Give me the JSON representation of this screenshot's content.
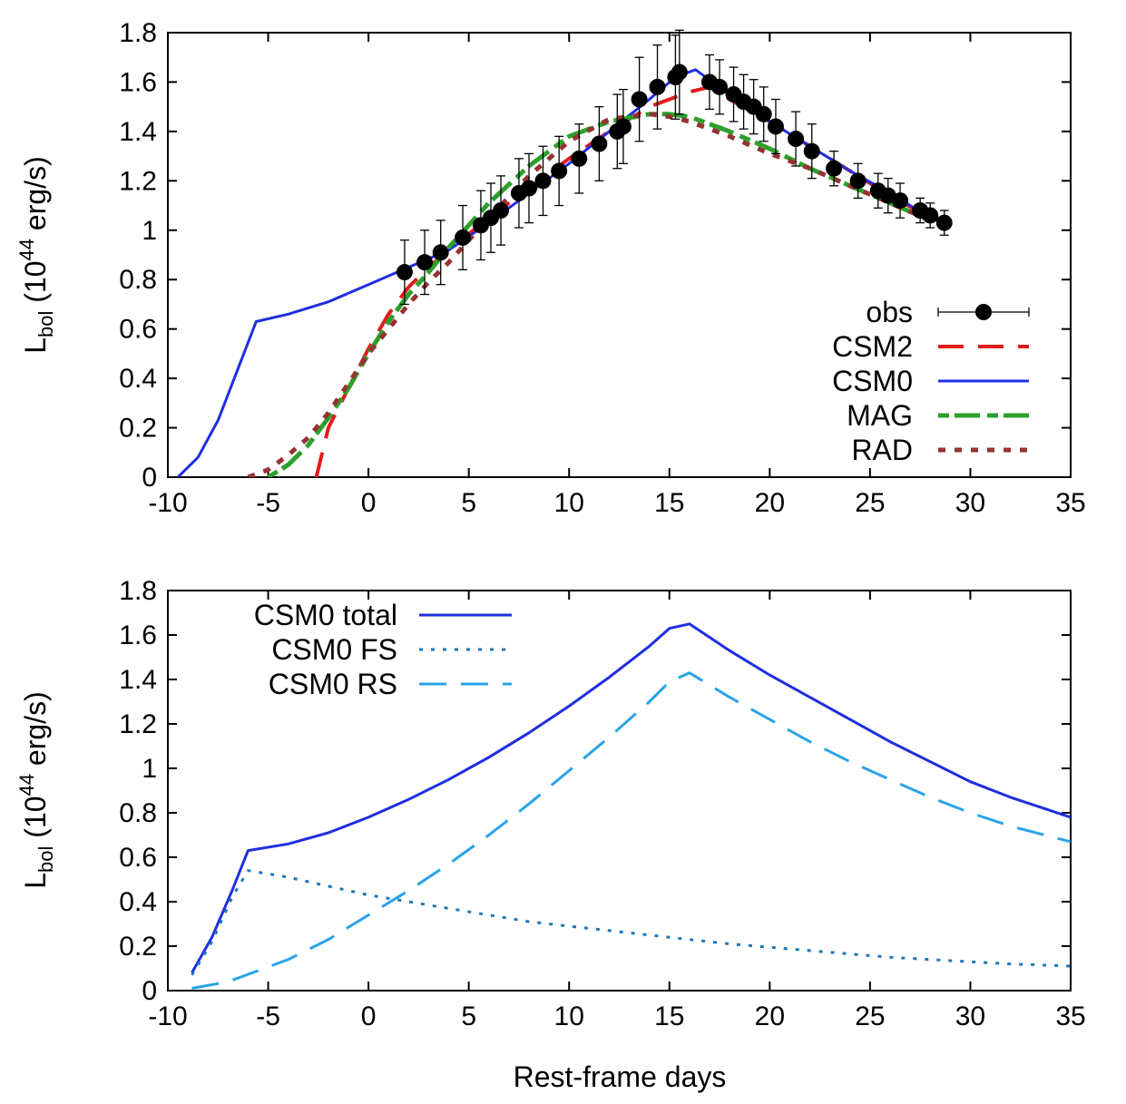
{
  "chart_data": [
    {
      "type": "line",
      "title": "",
      "xlabel": "",
      "ylabel_main": "L",
      "ylabel_sub": "bol",
      "ylabel_unit_pre": " (10",
      "ylabel_exp": "44",
      "ylabel_unit_post": " erg/s)",
      "xlim": [
        -10,
        35
      ],
      "ylim": [
        0,
        1.8
      ],
      "xticks": [
        "-10",
        "-5",
        "0",
        "5",
        "10",
        "15",
        "20",
        "25",
        "30",
        "35"
      ],
      "yticks": [
        "0",
        "0.2",
        "0.4",
        "0.6",
        "0.8",
        "1",
        "1.2",
        "1.4",
        "1.6",
        "1.8"
      ],
      "legend_position": "bottom-right",
      "observations": {
        "name": "obs",
        "color": "#000000",
        "points": [
          {
            "x": 1.8,
            "y": 0.83,
            "err": 0.13
          },
          {
            "x": 2.8,
            "y": 0.87,
            "err": 0.13
          },
          {
            "x": 3.6,
            "y": 0.91,
            "err": 0.13
          },
          {
            "x": 4.7,
            "y": 0.97,
            "err": 0.13
          },
          {
            "x": 5.6,
            "y": 1.02,
            "err": 0.14
          },
          {
            "x": 6.1,
            "y": 1.05,
            "err": 0.14
          },
          {
            "x": 6.6,
            "y": 1.08,
            "err": 0.14
          },
          {
            "x": 7.5,
            "y": 1.15,
            "err": 0.14
          },
          {
            "x": 8.0,
            "y": 1.17,
            "err": 0.14
          },
          {
            "x": 8.7,
            "y": 1.2,
            "err": 0.14
          },
          {
            "x": 9.5,
            "y": 1.24,
            "err": 0.14
          },
          {
            "x": 10.5,
            "y": 1.29,
            "err": 0.14
          },
          {
            "x": 11.5,
            "y": 1.35,
            "err": 0.15
          },
          {
            "x": 12.4,
            "y": 1.4,
            "err": 0.15
          },
          {
            "x": 12.7,
            "y": 1.42,
            "err": 0.15
          },
          {
            "x": 13.5,
            "y": 1.53,
            "err": 0.17
          },
          {
            "x": 14.4,
            "y": 1.58,
            "err": 0.17
          },
          {
            "x": 15.3,
            "y": 1.62,
            "err": 0.17
          },
          {
            "x": 15.5,
            "y": 1.64,
            "err": 0.17
          },
          {
            "x": 17.0,
            "y": 1.6,
            "err": 0.11
          },
          {
            "x": 17.5,
            "y": 1.58,
            "err": 0.11
          },
          {
            "x": 18.2,
            "y": 1.55,
            "err": 0.11
          },
          {
            "x": 18.7,
            "y": 1.52,
            "err": 0.11
          },
          {
            "x": 19.2,
            "y": 1.5,
            "err": 0.11
          },
          {
            "x": 19.7,
            "y": 1.47,
            "err": 0.11
          },
          {
            "x": 20.3,
            "y": 1.42,
            "err": 0.11
          },
          {
            "x": 21.3,
            "y": 1.37,
            "err": 0.11
          },
          {
            "x": 22.1,
            "y": 1.32,
            "err": 0.11
          },
          {
            "x": 23.2,
            "y": 1.25,
            "err": 0.07
          },
          {
            "x": 24.4,
            "y": 1.2,
            "err": 0.07
          },
          {
            "x": 25.4,
            "y": 1.16,
            "err": 0.07
          },
          {
            "x": 25.9,
            "y": 1.14,
            "err": 0.07
          },
          {
            "x": 26.5,
            "y": 1.12,
            "err": 0.07
          },
          {
            "x": 27.5,
            "y": 1.08,
            "err": 0.05
          },
          {
            "x": 28.0,
            "y": 1.06,
            "err": 0.05
          },
          {
            "x": 28.7,
            "y": 1.03,
            "err": 0.05
          }
        ]
      },
      "series": [
        {
          "name": "CSM2",
          "color": "#e41a1c",
          "dash": "28,16",
          "width": 4,
          "x": [
            -2.6,
            -2.0,
            -1.0,
            0.0,
            1.0,
            2.0,
            3.0,
            4.0,
            6.0,
            8.0,
            10.0,
            12.0,
            14.0,
            15.0,
            16.0,
            17.0,
            18.0,
            20.0,
            22.0,
            24.0,
            26.0,
            28.0
          ],
          "y": [
            0.0,
            0.2,
            0.36,
            0.52,
            0.66,
            0.77,
            0.85,
            0.92,
            1.05,
            1.17,
            1.29,
            1.4,
            1.5,
            1.53,
            1.56,
            1.58,
            1.53,
            1.44,
            1.34,
            1.24,
            1.14,
            1.05
          ]
        },
        {
          "name": "CSM0",
          "color": "#1f2ee0",
          "dash": "",
          "width": 3,
          "x": [
            -9.5,
            -8.5,
            -7.5,
            -6.5,
            -5.6,
            -4.0,
            -2.0,
            0.0,
            2.0,
            4.0,
            6.0,
            8.0,
            10.0,
            12.0,
            14.0,
            15.3,
            16.3,
            18.0,
            20.0,
            22.0,
            24.0,
            26.0,
            28.0
          ],
          "y": [
            0.0,
            0.08,
            0.23,
            0.44,
            0.63,
            0.66,
            0.71,
            0.78,
            0.85,
            0.92,
            1.03,
            1.15,
            1.27,
            1.4,
            1.53,
            1.62,
            1.65,
            1.55,
            1.44,
            1.34,
            1.24,
            1.15,
            1.05
          ]
        },
        {
          "name": "MAG",
          "color": "#2ca02c",
          "dash": "12,6,28,8",
          "width": 5,
          "x": [
            -5.0,
            -4.0,
            -3.0,
            -2.0,
            -1.0,
            0.0,
            1.0,
            2.0,
            3.0,
            4.0,
            6.0,
            8.0,
            10.0,
            12.0,
            14.0,
            15.0,
            16.0,
            18.0,
            20.0,
            22.0,
            24.0,
            26.0,
            28.0
          ],
          "y": [
            0.0,
            0.05,
            0.13,
            0.24,
            0.36,
            0.5,
            0.63,
            0.74,
            0.83,
            0.93,
            1.11,
            1.26,
            1.38,
            1.44,
            1.47,
            1.47,
            1.46,
            1.4,
            1.33,
            1.25,
            1.18,
            1.11,
            1.04
          ]
        },
        {
          "name": "RAD",
          "color": "#963232",
          "dash": "8,10",
          "width": 5,
          "x": [
            -6.0,
            -5.0,
            -4.0,
            -3.0,
            -2.0,
            -1.0,
            0.0,
            1.0,
            2.0,
            3.0,
            4.0,
            6.0,
            8.0,
            10.0,
            12.0,
            14.0,
            15.0,
            16.0,
            18.0,
            20.0,
            22.0,
            24.0,
            26.0,
            28.0
          ],
          "y": [
            0.0,
            0.03,
            0.09,
            0.16,
            0.26,
            0.38,
            0.5,
            0.6,
            0.7,
            0.79,
            0.87,
            1.05,
            1.22,
            1.36,
            1.45,
            1.47,
            1.46,
            1.44,
            1.38,
            1.31,
            1.25,
            1.18,
            1.11,
            1.04
          ]
        }
      ],
      "legend": [
        "obs",
        "CSM2",
        "CSM0",
        "MAG",
        "RAD"
      ]
    },
    {
      "type": "line",
      "title": "",
      "xlabel": "Rest-frame days",
      "ylabel_main": "L",
      "ylabel_sub": "bol",
      "ylabel_unit_pre": " (10",
      "ylabel_exp": "44",
      "ylabel_unit_post": " erg/s)",
      "xlim": [
        -10,
        35
      ],
      "ylim": [
        0,
        1.8
      ],
      "xticks": [
        "-10",
        "-5",
        "0",
        "5",
        "10",
        "15",
        "20",
        "25",
        "30",
        "35"
      ],
      "yticks": [
        "0",
        "0.2",
        "0.4",
        "0.6",
        "0.8",
        "1",
        "1.2",
        "1.4",
        "1.6",
        "1.8"
      ],
      "legend_position": "top-left",
      "series": [
        {
          "name": "CSM0 total",
          "color": "#1f2ee0",
          "dash": "",
          "width": 3,
          "x": [
            -8.8,
            -7.8,
            -6.8,
            -6.0,
            -4.0,
            -2.0,
            0.0,
            2.0,
            4.0,
            6.0,
            8.0,
            10.0,
            12.0,
            14.0,
            15.0,
            16.0,
            18.0,
            20.0,
            22.0,
            24.0,
            26.0,
            28.0,
            30.0,
            32.0,
            35.0
          ],
          "y": [
            0.08,
            0.24,
            0.45,
            0.63,
            0.66,
            0.71,
            0.78,
            0.86,
            0.95,
            1.05,
            1.16,
            1.28,
            1.41,
            1.55,
            1.63,
            1.65,
            1.53,
            1.42,
            1.32,
            1.22,
            1.12,
            1.03,
            0.94,
            0.87,
            0.78
          ]
        },
        {
          "name": "CSM0 FS",
          "color": "#1f77b4",
          "dash": "4,9",
          "width": 3,
          "x": [
            -8.8,
            -7.8,
            -6.8,
            -6.0,
            -4.0,
            -2.0,
            0.0,
            2.0,
            4.0,
            6.0,
            8.0,
            10.0,
            12.0,
            14.0,
            16.0,
            18.0,
            20.0,
            22.0,
            24.0,
            26.0,
            28.0,
            30.0,
            32.0,
            35.0
          ],
          "y": [
            0.07,
            0.22,
            0.42,
            0.54,
            0.51,
            0.47,
            0.43,
            0.4,
            0.37,
            0.34,
            0.31,
            0.29,
            0.27,
            0.25,
            0.23,
            0.21,
            0.195,
            0.18,
            0.165,
            0.15,
            0.14,
            0.13,
            0.12,
            0.11
          ]
        },
        {
          "name": "CSM0 RS",
          "color": "#2aa3e8",
          "dash": "30,16",
          "width": 3,
          "x": [
            -8.8,
            -7.0,
            -5.5,
            -4.0,
            -2.0,
            0.0,
            2.0,
            4.0,
            6.0,
            8.0,
            10.0,
            12.0,
            14.0,
            15.0,
            16.0,
            18.0,
            20.0,
            22.0,
            24.0,
            26.0,
            28.0,
            30.0,
            32.0,
            35.0
          ],
          "y": [
            0.01,
            0.04,
            0.09,
            0.14,
            0.23,
            0.34,
            0.45,
            0.57,
            0.7,
            0.84,
            0.99,
            1.14,
            1.3,
            1.39,
            1.43,
            1.32,
            1.22,
            1.12,
            1.03,
            0.95,
            0.87,
            0.8,
            0.74,
            0.67
          ]
        }
      ],
      "legend": [
        "CSM0 total",
        "CSM0 FS",
        "CSM0 RS"
      ]
    }
  ]
}
